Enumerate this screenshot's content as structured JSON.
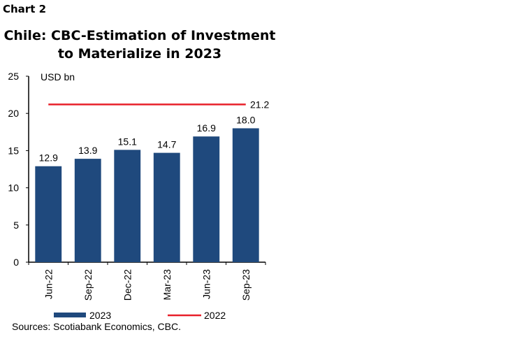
{
  "chart_label": "Chart 2",
  "chart_data": {
    "type": "bar",
    "title_lines": [
      "Chile: CBC-Estimation of Investment",
      "to Materialize in 2023"
    ],
    "ylabel": "USD bn",
    "ylim": [
      0,
      25
    ],
    "yticks": [
      0,
      5,
      10,
      15,
      20,
      25
    ],
    "categories": [
      "Jun-22",
      "Sep-22",
      "Dec-22",
      "Mar-23",
      "Jun-23",
      "Sep-23"
    ],
    "series": [
      {
        "name": "2023",
        "type": "bar",
        "color": "#1f497d",
        "values": [
          12.9,
          13.9,
          15.1,
          14.7,
          16.9,
          18.0
        ],
        "data_labels": [
          "12.9",
          "13.9",
          "15.1",
          "14.7",
          "16.9",
          "18.0"
        ]
      },
      {
        "name": "2022",
        "type": "line",
        "color": "#e8202a",
        "value": 21.2,
        "data_label": "21.2"
      }
    ],
    "legend_position": "bottom",
    "grid": false,
    "source": "Sources: Scotiabank Economics, CBC."
  }
}
